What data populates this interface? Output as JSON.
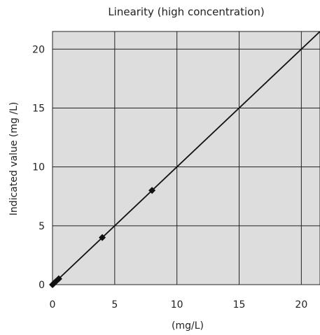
{
  "chart_data": {
    "type": "scatter",
    "title": "Linearity (high concentration)",
    "xlabel": "(mg/L)",
    "ylabel": "Indicated value (mg /L)",
    "xlim": [
      0,
      21.5
    ],
    "ylim": [
      0,
      21.5
    ],
    "xticks": [
      0,
      5,
      10,
      15,
      20
    ],
    "yticks": [
      0,
      5,
      10,
      15,
      20
    ],
    "x_tick_labels": [
      "0",
      "5",
      "10",
      "15",
      "20"
    ],
    "y_tick_labels": [
      "0",
      "5",
      "10",
      "15",
      "20"
    ],
    "grid": true,
    "legend": "none",
    "series": [
      {
        "marker": "diamond",
        "points": [
          {
            "x": 0,
            "y": 0
          },
          {
            "x": 0.1,
            "y": 0.1
          },
          {
            "x": 0.25,
            "y": 0.25
          },
          {
            "x": 0.5,
            "y": 0.5
          },
          {
            "x": 4,
            "y": 4
          },
          {
            "x": 8,
            "y": 8
          }
        ]
      }
    ],
    "fit_line": {
      "x": [
        0,
        21.5
      ],
      "y": [
        0,
        21.5
      ]
    },
    "colors": {
      "plot_background": "#dddddd",
      "grid": "#222222",
      "marker": "#111111",
      "line": "#111111"
    }
  }
}
